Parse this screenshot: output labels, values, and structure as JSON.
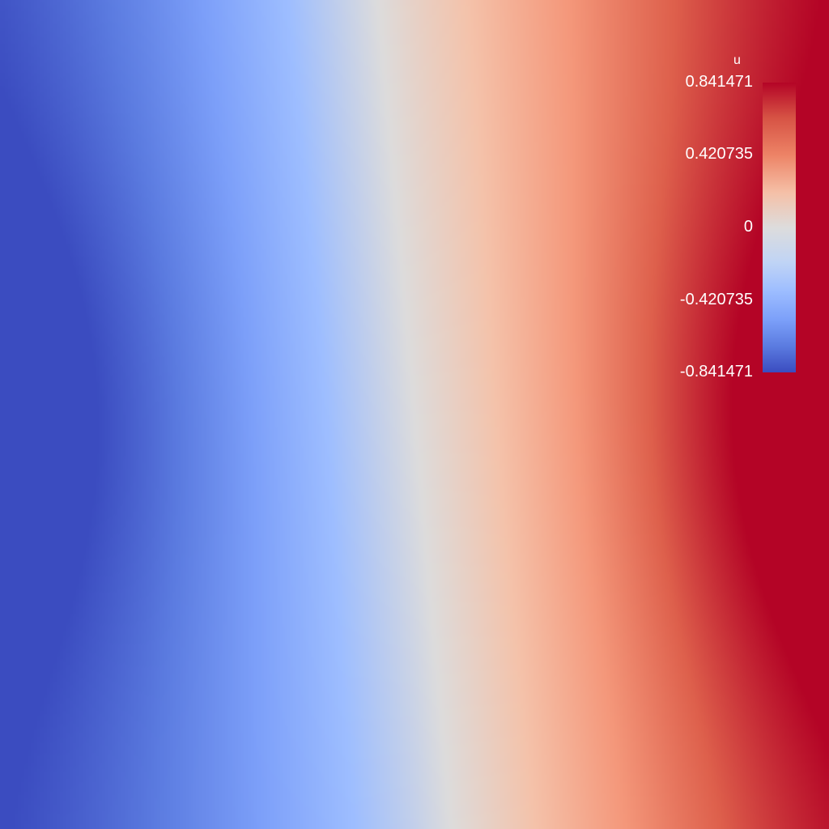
{
  "colorbar": {
    "title": "u",
    "ticks": [
      "0.841471",
      "0.420735",
      "0",
      "-0.420735",
      "-0.841471"
    ],
    "max": 0.841471,
    "min": -0.841471,
    "colormap": "coolwarm",
    "colors": {
      "low": "#3b4cc0",
      "mid": "#dddcdc",
      "high": "#b40426"
    }
  },
  "field": {
    "variable": "u",
    "min_value_location": "left-middle",
    "max_value_location": "right-middle"
  }
}
